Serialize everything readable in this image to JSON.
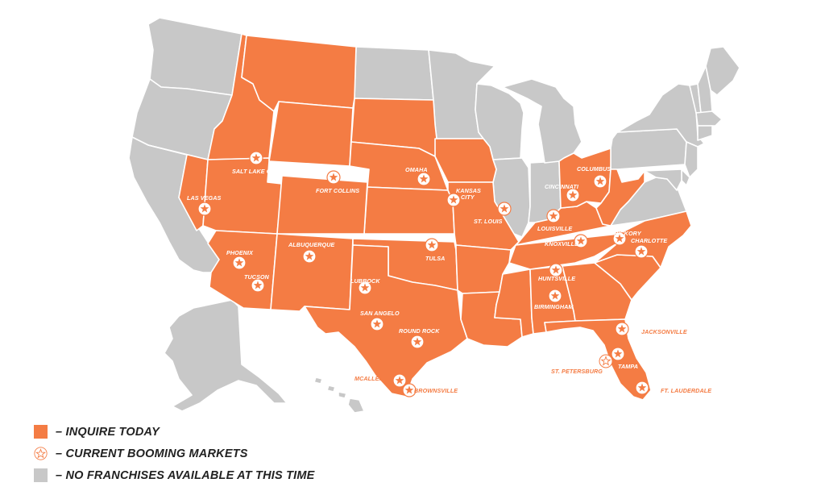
{
  "colors": {
    "inquire": "#f47c44",
    "unavailable": "#c8c8c8",
    "border": "#ffffff",
    "marker_ring": "#f47c44",
    "marker_fill": "#ffffff",
    "label_outside": "#f47c44"
  },
  "map": {
    "title": "",
    "states_inquire": [
      "ID",
      "MT",
      "WY",
      "SD",
      "NE",
      "IA",
      "KS",
      "MO",
      "NV",
      "UT",
      "CO",
      "AZ",
      "NM",
      "OK",
      "TX",
      "AR",
      "LA",
      "MS",
      "AL",
      "TN",
      "KY",
      "OH",
      "WV",
      "GA",
      "SC",
      "NC",
      "FL"
    ],
    "states_unavailable": [
      "WA",
      "OR",
      "CA",
      "ND",
      "MN",
      "WI",
      "IL",
      "IN",
      "MI",
      "PA",
      "NY",
      "VA",
      "ME",
      "VT",
      "NH",
      "MA",
      "CT",
      "NJ",
      "DE",
      "MD",
      "AK",
      "HI"
    ],
    "markers_icon": "star-in-circle-icon",
    "cities": [
      {
        "id": "salt-lake-city",
        "name": "SALT LAKE CITY"
      },
      {
        "id": "las-vegas",
        "name": "LAS VEGAS"
      },
      {
        "id": "fort-collins",
        "name": "FORT COLLINS"
      },
      {
        "id": "omaha",
        "name": "OMAHA"
      },
      {
        "id": "kansas-city",
        "name": "KANSAS CITY"
      },
      {
        "id": "st-louis",
        "name": "ST. LOUIS"
      },
      {
        "id": "cincinnati",
        "name": "CINCINNATI"
      },
      {
        "id": "columbus",
        "name": "COLUMBUS"
      },
      {
        "id": "louisville",
        "name": "LOUISVILLE"
      },
      {
        "id": "phoenix",
        "name": "PHOENIX"
      },
      {
        "id": "tucson",
        "name": "TUCSON"
      },
      {
        "id": "albuquerque",
        "name": "ALBUQUERQUE"
      },
      {
        "id": "tulsa",
        "name": "TULSA"
      },
      {
        "id": "knoxville",
        "name": "KNOXVILLE"
      },
      {
        "id": "hickory",
        "name": "HICKORY"
      },
      {
        "id": "charlotte",
        "name": "CHARLOTTE"
      },
      {
        "id": "lubbock",
        "name": "LUBBOCK"
      },
      {
        "id": "huntsville",
        "name": "HUNTSVILLE"
      },
      {
        "id": "birmingham",
        "name": "BIRMINGHAM"
      },
      {
        "id": "san-angelo",
        "name": "SAN ANGELO"
      },
      {
        "id": "round-rock",
        "name": "ROUND ROCK"
      },
      {
        "id": "jacksonville",
        "name": "JACKSONVILLE"
      },
      {
        "id": "st-petersburg",
        "name": "ST. PETERSBURG"
      },
      {
        "id": "tampa",
        "name": "TAMPA"
      },
      {
        "id": "mcallen",
        "name": "MCALLEN"
      },
      {
        "id": "brownsville",
        "name": "BROWNSVILLE"
      },
      {
        "id": "ft-lauderdale",
        "name": "FT. LAUDERDALE"
      }
    ]
  },
  "legend": {
    "inquire_label": "– INQUIRE TODAY",
    "booming_label": "– CURRENT BOOMING MARKETS",
    "unavailable_label": "– NO FRANCHISES AVAILABLE AT THIS TIME"
  }
}
